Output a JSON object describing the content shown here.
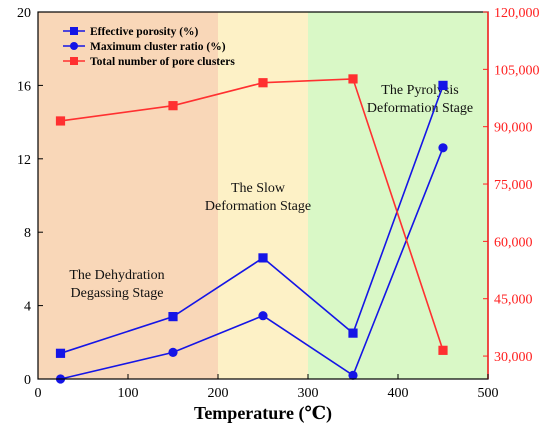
{
  "chart_data": {
    "type": "line",
    "xlabel": "Temperature (℃)",
    "xlim": [
      0,
      500
    ],
    "x_ticks": [
      0,
      100,
      200,
      300,
      400,
      500
    ],
    "ylim_left": [
      0,
      20
    ],
    "y_left_ticks": [
      0,
      4,
      8,
      12,
      16,
      20
    ],
    "ylim_right": [
      24000,
      120000
    ],
    "y_right_ticks": [
      30000,
      45000,
      60000,
      75000,
      90000,
      105000,
      120000
    ],
    "y_right_tick_labels": [
      "30,000",
      "45,000",
      "60,000",
      "75,000",
      "90,000",
      "105,000",
      "120,000"
    ],
    "x": [
      25,
      150,
      250,
      350,
      450
    ],
    "series": [
      {
        "name": "Effective porosity (%)",
        "axis": "left",
        "marker": "square",
        "color": "#1515e6",
        "values": [
          1.4,
          3.4,
          6.6,
          2.5,
          16.0
        ]
      },
      {
        "name": "Maximum cluster ratio (%)",
        "axis": "left",
        "marker": "circle",
        "color": "#1515e6",
        "values": [
          0.0,
          1.45,
          3.45,
          0.2,
          12.6
        ]
      },
      {
        "name": "Total number of pore clusters",
        "axis": "right",
        "marker": "square",
        "color": "#ff3030",
        "values": [
          91500,
          95500,
          101500,
          102500,
          31500
        ]
      }
    ],
    "regions": [
      {
        "x_start": 0,
        "x_end": 200,
        "color": "#f9d7b8",
        "label_lines": [
          "The Dehydration",
          "Degassing Stage"
        ]
      },
      {
        "x_start": 200,
        "x_end": 300,
        "color": "#fdf1c6",
        "label_lines": [
          "The Slow",
          "Deformation Stage"
        ]
      },
      {
        "x_start": 300,
        "x_end": 500,
        "color": "#d9f8c6",
        "label_lines": [
          "The Pyrolysis",
          "Deformation Stage"
        ]
      }
    ],
    "legend_position": "top-left",
    "grid": false
  }
}
